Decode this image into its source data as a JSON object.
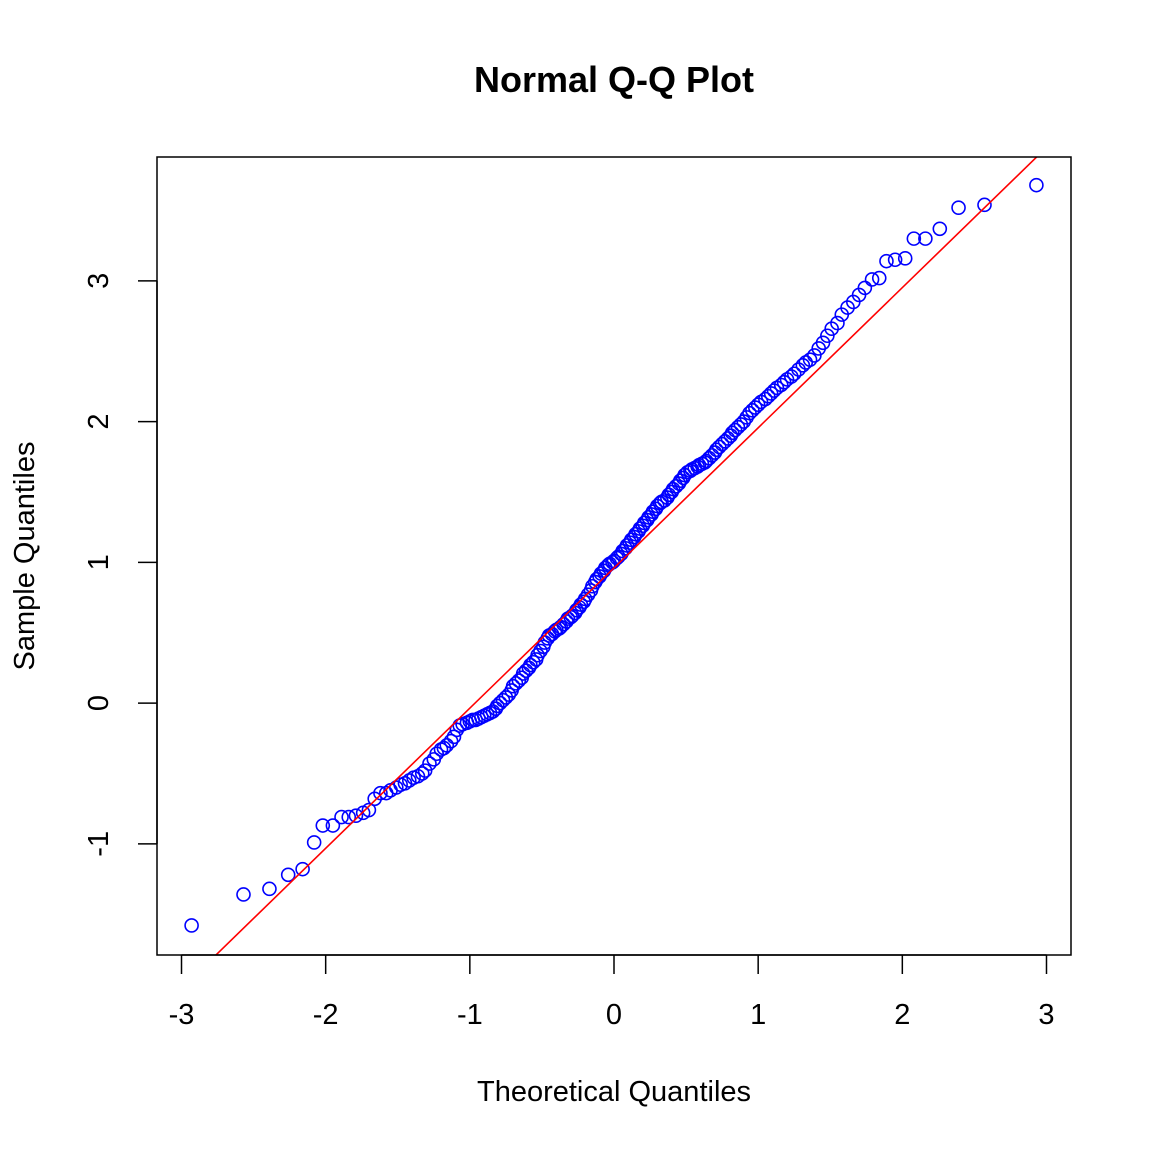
{
  "chart_data": {
    "type": "scatter",
    "title": "Normal Q-Q Plot",
    "xlabel": "Theoretical Quantiles",
    "ylabel": "Sample Quantiles",
    "xlim": [
      -3.17,
      3.17
    ],
    "ylim": [
      -1.79,
      3.88
    ],
    "x_ticks": [
      -3,
      -2,
      -1,
      0,
      1,
      2,
      3
    ],
    "y_ticks": [
      -1,
      0,
      1,
      2,
      3
    ],
    "grid": false,
    "point_color": "#0000ff",
    "line_color": "#ff0000",
    "reference_line": {
      "slope": 0.996,
      "intercept": 0.96
    },
    "points": [
      [
        -2.93,
        -1.58
      ],
      [
        -2.57,
        -1.36
      ],
      [
        -2.39,
        -1.32
      ],
      [
        -2.26,
        -1.22
      ],
      [
        -2.16,
        -1.18
      ],
      [
        -2.08,
        -0.99
      ],
      [
        -2.02,
        -0.87
      ],
      [
        -1.95,
        -0.87
      ],
      [
        -1.89,
        -0.81
      ],
      [
        -1.84,
        -0.81
      ],
      [
        -1.79,
        -0.8
      ],
      [
        -1.74,
        -0.78
      ],
      [
        -1.7,
        -0.76
      ],
      [
        -1.66,
        -0.68
      ],
      [
        -1.62,
        -0.64
      ],
      [
        -1.58,
        -0.64
      ],
      [
        -1.55,
        -0.62
      ],
      [
        -1.51,
        -0.6
      ],
      [
        -1.48,
        -0.58
      ],
      [
        -1.45,
        -0.57
      ],
      [
        -1.42,
        -0.55
      ],
      [
        -1.39,
        -0.53
      ],
      [
        -1.36,
        -0.52
      ],
      [
        -1.33,
        -0.5
      ],
      [
        -1.31,
        -0.48
      ],
      [
        -1.28,
        -0.43
      ],
      [
        -1.25,
        -0.4
      ],
      [
        -1.23,
        -0.36
      ],
      [
        -1.2,
        -0.33
      ],
      [
        -1.18,
        -0.32
      ],
      [
        -1.16,
        -0.3
      ],
      [
        -1.13,
        -0.27
      ],
      [
        -1.11,
        -0.24
      ],
      [
        -1.09,
        -0.19
      ],
      [
        -1.07,
        -0.16
      ],
      [
        -1.05,
        -0.15
      ],
      [
        -1.02,
        -0.14
      ],
      [
        -1.0,
        -0.13
      ],
      [
        -0.98,
        -0.12
      ],
      [
        -0.96,
        -0.12
      ],
      [
        -0.94,
        -0.11
      ],
      [
        -0.92,
        -0.1
      ],
      [
        -0.9,
        -0.09
      ],
      [
        -0.88,
        -0.08
      ],
      [
        -0.86,
        -0.07
      ],
      [
        -0.84,
        -0.06
      ],
      [
        -0.82,
        -0.04
      ],
      [
        -0.81,
        -0.02
      ],
      [
        -0.79,
        0.0
      ],
      [
        -0.77,
        0.02
      ],
      [
        -0.75,
        0.04
      ],
      [
        -0.73,
        0.06
      ],
      [
        -0.71,
        0.09
      ],
      [
        -0.7,
        0.12
      ],
      [
        -0.68,
        0.14
      ],
      [
        -0.66,
        0.16
      ],
      [
        -0.64,
        0.18
      ],
      [
        -0.63,
        0.21
      ],
      [
        -0.61,
        0.23
      ],
      [
        -0.59,
        0.25
      ],
      [
        -0.58,
        0.27
      ],
      [
        -0.56,
        0.29
      ],
      [
        -0.54,
        0.31
      ],
      [
        -0.53,
        0.34
      ],
      [
        -0.51,
        0.37
      ],
      [
        -0.49,
        0.4
      ],
      [
        -0.48,
        0.43
      ],
      [
        -0.46,
        0.46
      ],
      [
        -0.45,
        0.48
      ],
      [
        -0.43,
        0.49
      ],
      [
        -0.41,
        0.51
      ],
      [
        -0.4,
        0.52
      ],
      [
        -0.38,
        0.53
      ],
      [
        -0.37,
        0.54
      ],
      [
        -0.35,
        0.56
      ],
      [
        -0.33,
        0.58
      ],
      [
        -0.32,
        0.6
      ],
      [
        -0.3,
        0.61
      ],
      [
        -0.29,
        0.62
      ],
      [
        -0.27,
        0.64
      ],
      [
        -0.26,
        0.66
      ],
      [
        -0.24,
        0.68
      ],
      [
        -0.23,
        0.7
      ],
      [
        -0.21,
        0.72
      ],
      [
        -0.2,
        0.74
      ],
      [
        -0.18,
        0.77
      ],
      [
        -0.16,
        0.8
      ],
      [
        -0.15,
        0.83
      ],
      [
        -0.13,
        0.86
      ],
      [
        -0.12,
        0.88
      ],
      [
        -0.1,
        0.9
      ],
      [
        -0.09,
        0.92
      ],
      [
        -0.07,
        0.94
      ],
      [
        -0.06,
        0.96
      ],
      [
        -0.04,
        0.98
      ],
      [
        -0.03,
        0.99
      ],
      [
        -0.01,
        1.0
      ],
      [
        0.0,
        1.01
      ],
      [
        0.02,
        1.03
      ],
      [
        0.03,
        1.04
      ],
      [
        0.05,
        1.06
      ],
      [
        0.06,
        1.08
      ],
      [
        0.08,
        1.1
      ],
      [
        0.09,
        1.12
      ],
      [
        0.11,
        1.14
      ],
      [
        0.12,
        1.16
      ],
      [
        0.14,
        1.18
      ],
      [
        0.15,
        1.2
      ],
      [
        0.17,
        1.22
      ],
      [
        0.18,
        1.24
      ],
      [
        0.2,
        1.26
      ],
      [
        0.21,
        1.28
      ],
      [
        0.23,
        1.3
      ],
      [
        0.24,
        1.32
      ],
      [
        0.26,
        1.34
      ],
      [
        0.27,
        1.36
      ],
      [
        0.29,
        1.38
      ],
      [
        0.3,
        1.4
      ],
      [
        0.32,
        1.42
      ],
      [
        0.33,
        1.43
      ],
      [
        0.35,
        1.44
      ],
      [
        0.37,
        1.46
      ],
      [
        0.38,
        1.48
      ],
      [
        0.4,
        1.5
      ],
      [
        0.41,
        1.52
      ],
      [
        0.43,
        1.54
      ],
      [
        0.45,
        1.56
      ],
      [
        0.46,
        1.58
      ],
      [
        0.48,
        1.6
      ],
      [
        0.49,
        1.62
      ],
      [
        0.51,
        1.64
      ],
      [
        0.53,
        1.65
      ],
      [
        0.54,
        1.66
      ],
      [
        0.56,
        1.67
      ],
      [
        0.58,
        1.68
      ],
      [
        0.59,
        1.69
      ],
      [
        0.61,
        1.7
      ],
      [
        0.63,
        1.71
      ],
      [
        0.64,
        1.72
      ],
      [
        0.66,
        1.74
      ],
      [
        0.68,
        1.76
      ],
      [
        0.7,
        1.78
      ],
      [
        0.71,
        1.8
      ],
      [
        0.73,
        1.82
      ],
      [
        0.75,
        1.84
      ],
      [
        0.77,
        1.86
      ],
      [
        0.79,
        1.88
      ],
      [
        0.81,
        1.9
      ],
      [
        0.82,
        1.92
      ],
      [
        0.84,
        1.94
      ],
      [
        0.86,
        1.96
      ],
      [
        0.88,
        1.98
      ],
      [
        0.9,
        2.0
      ],
      [
        0.92,
        2.03
      ],
      [
        0.94,
        2.06
      ],
      [
        0.96,
        2.08
      ],
      [
        0.98,
        2.1
      ],
      [
        1.0,
        2.12
      ],
      [
        1.02,
        2.14
      ],
      [
        1.05,
        2.16
      ],
      [
        1.07,
        2.18
      ],
      [
        1.09,
        2.2
      ],
      [
        1.11,
        2.22
      ],
      [
        1.13,
        2.24
      ],
      [
        1.16,
        2.26
      ],
      [
        1.18,
        2.28
      ],
      [
        1.2,
        2.3
      ],
      [
        1.23,
        2.32
      ],
      [
        1.25,
        2.34
      ],
      [
        1.28,
        2.37
      ],
      [
        1.31,
        2.4
      ],
      [
        1.33,
        2.42
      ],
      [
        1.36,
        2.44
      ],
      [
        1.39,
        2.47
      ],
      [
        1.42,
        2.52
      ],
      [
        1.45,
        2.56
      ],
      [
        1.48,
        2.61
      ],
      [
        1.51,
        2.66
      ],
      [
        1.55,
        2.7
      ],
      [
        1.58,
        2.76
      ],
      [
        1.62,
        2.81
      ],
      [
        1.66,
        2.85
      ],
      [
        1.7,
        2.9
      ],
      [
        1.74,
        2.95
      ],
      [
        1.79,
        3.01
      ],
      [
        1.84,
        3.02
      ],
      [
        1.89,
        3.14
      ],
      [
        1.95,
        3.15
      ],
      [
        2.02,
        3.16
      ],
      [
        2.08,
        3.3
      ],
      [
        2.16,
        3.3
      ],
      [
        2.26,
        3.37
      ],
      [
        2.39,
        3.52
      ],
      [
        2.57,
        3.54
      ],
      [
        2.93,
        3.68
      ]
    ]
  }
}
